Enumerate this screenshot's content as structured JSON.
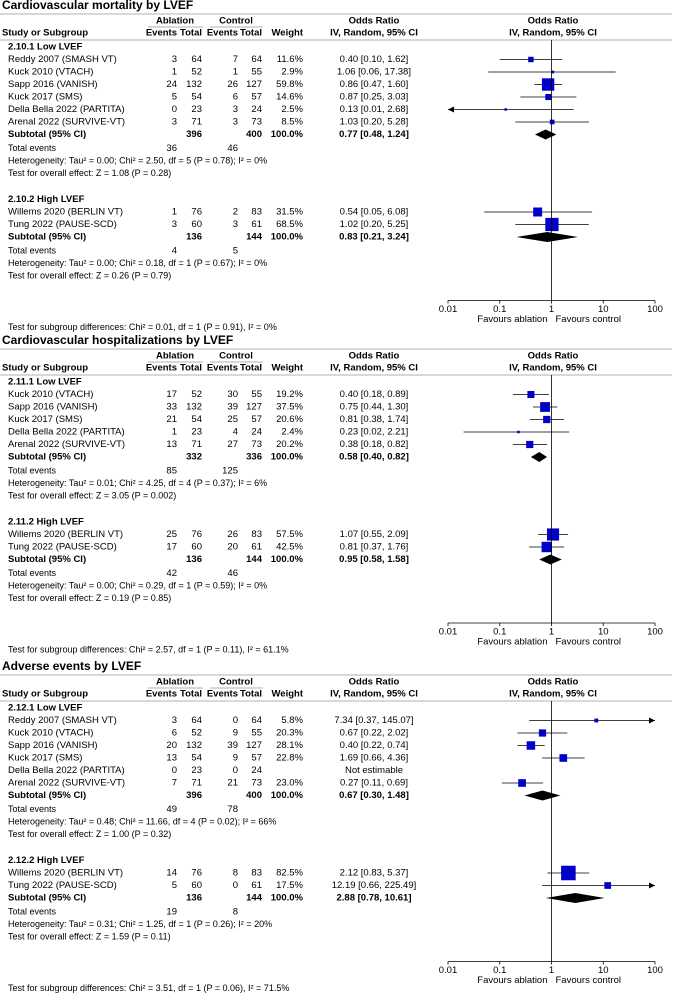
{
  "columns": {
    "study": "Study or Subgroup",
    "ablation": "Ablation",
    "control": "Control",
    "events": "Events",
    "total": "Total",
    "weight": "Weight",
    "or": "Odds Ratio",
    "method": "IV, Random, 95% CI"
  },
  "axis": {
    "type": "forest",
    "xlim": [
      0.01,
      100
    ],
    "xticks": [
      0.01,
      0.1,
      1,
      10,
      100
    ],
    "log": true,
    "left_label": "Favours ablation",
    "right_label": "Favours control"
  },
  "panels": [
    {
      "title": "Cardiovascular mortality by LVEF",
      "subgroups": [
        {
          "title": "2.10.1 Low LVEF",
          "studies": [
            {
              "name": "Reddy 2007 (SMASH VT)",
              "e1": 3,
              "n1": 64,
              "e2": 7,
              "n2": 64,
              "weight": 11.6,
              "weight_label": "11.6%",
              "or": 0.4,
              "lo": 0.1,
              "hi": 1.62,
              "ci_label": "0.40 [0.10, 1.62]"
            },
            {
              "name": "Kuck 2010 (VTACH)",
              "e1": 1,
              "n1": 52,
              "e2": 1,
              "n2": 55,
              "weight": 2.9,
              "weight_label": "2.9%",
              "or": 1.06,
              "lo": 0.06,
              "hi": 17.38,
              "ci_label": "1.06 [0.06, 17.38]"
            },
            {
              "name": "Sapp 2016 (VANISH)",
              "e1": 24,
              "n1": 132,
              "e2": 26,
              "n2": 127,
              "weight": 59.8,
              "weight_label": "59.8%",
              "or": 0.86,
              "lo": 0.47,
              "hi": 1.6,
              "ci_label": "0.86 [0.47, 1.60]"
            },
            {
              "name": "Kuck 2017 (SMS)",
              "e1": 5,
              "n1": 54,
              "e2": 6,
              "n2": 57,
              "weight": 14.6,
              "weight_label": "14.6%",
              "or": 0.87,
              "lo": 0.25,
              "hi": 3.03,
              "ci_label": "0.87 [0.25, 3.03]"
            },
            {
              "name": "Della Bella 2022 (PARTITA)",
              "e1": 0,
              "n1": 23,
              "e2": 3,
              "n2": 24,
              "weight": 2.5,
              "weight_label": "2.5%",
              "or": 0.13,
              "lo": 0.01,
              "hi": 2.68,
              "ci_label": "0.13 [0.01, 2.68]"
            },
            {
              "name": "Arenal 2022 (SURVIVE-VT)",
              "e1": 3,
              "n1": 71,
              "e2": 3,
              "n2": 73,
              "weight": 8.5,
              "weight_label": "8.5%",
              "or": 1.03,
              "lo": 0.2,
              "hi": 5.28,
              "ci_label": "1.03 [0.20, 5.28]"
            }
          ],
          "subtotal": {
            "label": "Subtotal (95% CI)",
            "n1": 396,
            "n2": 400,
            "weight_label": "100.0%",
            "or": 0.77,
            "lo": 0.48,
            "hi": 1.24,
            "ci_label": "0.77 [0.48, 1.24]"
          },
          "total_events": {
            "label": "Total events",
            "e1": 36,
            "e2": 46
          },
          "heterogeneity": "Heterogeneity: Tau² = 0.00; Chi² = 2.50, df = 5 (P = 0.78); I² = 0%",
          "overall": "Test for overall effect: Z = 1.08 (P = 0.28)"
        },
        {
          "title": "2.10.2 High LVEF",
          "studies": [
            {
              "name": "Willems 2020 (BERLIN VT)",
              "e1": 1,
              "n1": 76,
              "e2": 2,
              "n2": 83,
              "weight": 31.5,
              "weight_label": "31.5%",
              "or": 0.54,
              "lo": 0.05,
              "hi": 6.08,
              "ci_label": "0.54 [0.05, 6.08]"
            },
            {
              "name": "Tung 2022 (PAUSE-SCD)",
              "e1": 3,
              "n1": 60,
              "e2": 3,
              "n2": 61,
              "weight": 68.5,
              "weight_label": "68.5%",
              "or": 1.02,
              "lo": 0.2,
              "hi": 5.25,
              "ci_label": "1.02 [0.20, 5.25]"
            }
          ],
          "subtotal": {
            "label": "Subtotal (95% CI)",
            "n1": 136,
            "n2": 144,
            "weight_label": "100.0%",
            "or": 0.83,
            "lo": 0.21,
            "hi": 3.24,
            "ci_label": "0.83 [0.21, 3.24]"
          },
          "total_events": {
            "label": "Total events",
            "e1": 4,
            "e2": 5
          },
          "heterogeneity": "Heterogeneity: Tau² = 0.00; Chi² = 0.18, df = 1 (P = 0.67); I² = 0%",
          "overall": "Test for overall effect: Z = 0.26 (P = 0.79)"
        }
      ],
      "differences": "Test for subgroup differences: Chi² = 0.01, df = 1 (P = 0.91), I² = 0%"
    },
    {
      "title": "Cardiovascular hospitalizations by LVEF",
      "subgroups": [
        {
          "title": "2.11.1 Low LVEF",
          "studies": [
            {
              "name": "Kuck 2010 (VTACH)",
              "e1": 17,
              "n1": 52,
              "e2": 30,
              "n2": 55,
              "weight": 19.2,
              "weight_label": "19.2%",
              "or": 0.4,
              "lo": 0.18,
              "hi": 0.89,
              "ci_label": "0.40 [0.18, 0.89]"
            },
            {
              "name": "Sapp 2016 (VANISH)",
              "e1": 33,
              "n1": 132,
              "e2": 39,
              "n2": 127,
              "weight": 37.5,
              "weight_label": "37.5%",
              "or": 0.75,
              "lo": 0.44,
              "hi": 1.3,
              "ci_label": "0.75 [0.44, 1.30]"
            },
            {
              "name": "Kuck 2017 (SMS)",
              "e1": 21,
              "n1": 54,
              "e2": 25,
              "n2": 57,
              "weight": 20.6,
              "weight_label": "20.6%",
              "or": 0.81,
              "lo": 0.38,
              "hi": 1.74,
              "ci_label": "0.81 [0.38, 1.74]"
            },
            {
              "name": "Della Bella 2022 (PARTITA)",
              "e1": 1,
              "n1": 23,
              "e2": 4,
              "n2": 24,
              "weight": 2.4,
              "weight_label": "2.4%",
              "or": 0.23,
              "lo": 0.02,
              "hi": 2.21,
              "ci_label": "0.23 [0.02, 2.21]"
            },
            {
              "name": "Arenal 2022 (SURVIVE-VT)",
              "e1": 13,
              "n1": 71,
              "e2": 27,
              "n2": 73,
              "weight": 20.2,
              "weight_label": "20.2%",
              "or": 0.38,
              "lo": 0.18,
              "hi": 0.82,
              "ci_label": "0.38 [0.18, 0.82]"
            }
          ],
          "subtotal": {
            "label": "Subtotal (95% CI)",
            "n1": 332,
            "n2": 336,
            "weight_label": "100.0%",
            "or": 0.58,
            "lo": 0.4,
            "hi": 0.82,
            "ci_label": "0.58 [0.40, 0.82]"
          },
          "total_events": {
            "label": "Total events",
            "e1": 85,
            "e2": 125
          },
          "heterogeneity": "Heterogeneity: Tau² = 0.01; Chi² = 4.25, df = 4 (P = 0.37); I² = 6%",
          "overall": "Test for overall effect: Z = 3.05 (P = 0.002)"
        },
        {
          "title": "2.11.2 High LVEF",
          "studies": [
            {
              "name": "Willems 2020 (BERLIN VT)",
              "e1": 25,
              "n1": 76,
              "e2": 26,
              "n2": 83,
              "weight": 57.5,
              "weight_label": "57.5%",
              "or": 1.07,
              "lo": 0.55,
              "hi": 2.09,
              "ci_label": "1.07 [0.55, 2.09]"
            },
            {
              "name": "Tung 2022 (PAUSE-SCD)",
              "e1": 17,
              "n1": 60,
              "e2": 20,
              "n2": 61,
              "weight": 42.5,
              "weight_label": "42.5%",
              "or": 0.81,
              "lo": 0.37,
              "hi": 1.76,
              "ci_label": "0.81 [0.37, 1.76]"
            }
          ],
          "subtotal": {
            "label": "Subtotal (95% CI)",
            "n1": 136,
            "n2": 144,
            "weight_label": "100.0%",
            "or": 0.95,
            "lo": 0.58,
            "hi": 1.58,
            "ci_label": "0.95 [0.58, 1.58]"
          },
          "total_events": {
            "label": "Total events",
            "e1": 42,
            "e2": 46
          },
          "heterogeneity": "Heterogeneity: Tau² = 0.00; Chi² = 0.29, df = 1 (P = 0.59); I² = 0%",
          "overall": "Test for overall effect: Z = 0.19 (P = 0.85)"
        }
      ],
      "differences": "Test for subgroup differences: Chi² = 2.57, df = 1 (P = 0.11), I² = 61.1%"
    },
    {
      "title": "Adverse events by LVEF",
      "subgroups": [
        {
          "title": "2.12.1 Low LVEF",
          "studies": [
            {
              "name": "Reddy 2007 (SMASH VT)",
              "e1": 3,
              "n1": 64,
              "e2": 0,
              "n2": 64,
              "weight": 5.8,
              "weight_label": "5.8%",
              "or": 7.34,
              "lo": 0.37,
              "hi": 145.07,
              "ci_label": "7.34 [0.37, 145.07]"
            },
            {
              "name": "Kuck 2010 (VTACH)",
              "e1": 6,
              "n1": 52,
              "e2": 9,
              "n2": 55,
              "weight": 20.3,
              "weight_label": "20.3%",
              "or": 0.67,
              "lo": 0.22,
              "hi": 2.02,
              "ci_label": "0.67 [0.22, 2.02]"
            },
            {
              "name": "Sapp 2016 (VANISH)",
              "e1": 20,
              "n1": 132,
              "e2": 39,
              "n2": 127,
              "weight": 28.1,
              "weight_label": "28.1%",
              "or": 0.4,
              "lo": 0.22,
              "hi": 0.74,
              "ci_label": "0.40 [0.22, 0.74]"
            },
            {
              "name": "Kuck 2017 (SMS)",
              "e1": 13,
              "n1": 54,
              "e2": 9,
              "n2": 57,
              "weight": 22.8,
              "weight_label": "22.8%",
              "or": 1.69,
              "lo": 0.66,
              "hi": 4.36,
              "ci_label": "1.69 [0.66, 4.36]"
            },
            {
              "name": "Della Bella 2022 (PARTITA)",
              "e1": 0,
              "n1": 23,
              "e2": 0,
              "n2": 24,
              "ci_label": "Not estimable"
            },
            {
              "name": "Arenal 2022 (SURVIVE-VT)",
              "e1": 7,
              "n1": 71,
              "e2": 21,
              "n2": 73,
              "weight": 23.0,
              "weight_label": "23.0%",
              "or": 0.27,
              "lo": 0.11,
              "hi": 0.69,
              "ci_label": "0.27 [0.11, 0.69]"
            }
          ],
          "subtotal": {
            "label": "Subtotal (95% CI)",
            "n1": 396,
            "n2": 400,
            "weight_label": "100.0%",
            "or": 0.67,
            "lo": 0.3,
            "hi": 1.48,
            "ci_label": "0.67 [0.30, 1.48]"
          },
          "total_events": {
            "label": "Total events",
            "e1": 49,
            "e2": 78
          },
          "heterogeneity": "Heterogeneity: Tau² = 0.48; Chi² = 11.66, df = 4 (P = 0.02); I² = 66%",
          "overall": "Test for overall effect: Z = 1.00 (P = 0.32)"
        },
        {
          "title": "2.12.2 High LVEF",
          "studies": [
            {
              "name": "Willems 2020 (BERLIN VT)",
              "e1": 14,
              "n1": 76,
              "e2": 8,
              "n2": 83,
              "weight": 82.5,
              "weight_label": "82.5%",
              "or": 2.12,
              "lo": 0.83,
              "hi": 5.37,
              "ci_label": "2.12 [0.83, 5.37]"
            },
            {
              "name": "Tung 2022 (PAUSE-SCD)",
              "e1": 5,
              "n1": 60,
              "e2": 0,
              "n2": 61,
              "weight": 17.5,
              "weight_label": "17.5%",
              "or": 12.19,
              "lo": 0.66,
              "hi": 225.49,
              "ci_label": "12.19 [0.66, 225.49]"
            }
          ],
          "subtotal": {
            "label": "Subtotal (95% CI)",
            "n1": 136,
            "n2": 144,
            "weight_label": "100.0%",
            "or": 2.88,
            "lo": 0.78,
            "hi": 10.61,
            "ci_label": "2.88 [0.78, 10.61]"
          },
          "total_events": {
            "label": "Total events",
            "e1": 19,
            "e2": 8
          },
          "heterogeneity": "Heterogeneity: Tau² = 0.31; Chi² = 1.25, df = 1 (P = 0.26); I² = 20%",
          "overall": "Test for overall effect: Z = 1.59 (P = 0.11)"
        }
      ],
      "differences": "Test for subgroup differences: Chi² = 3.51, df = 1 (P = 0.06), I² = 71.5%"
    }
  ]
}
